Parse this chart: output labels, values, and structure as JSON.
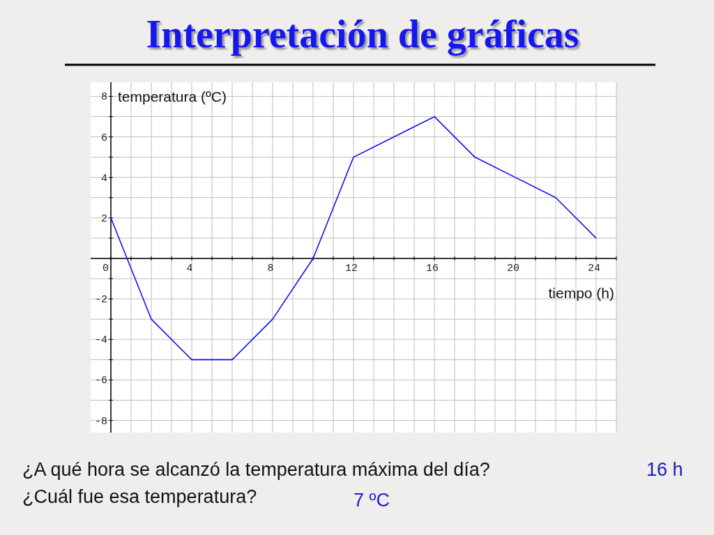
{
  "chart_data": {
    "type": "line",
    "title": "Interpretación de gráficas",
    "xlabel": "tiempo (h)",
    "ylabel": "temperatura (ºC)",
    "x": [
      0,
      2,
      4,
      6,
      8,
      10,
      12,
      14,
      16,
      18,
      20,
      22,
      24
    ],
    "values": [
      2,
      -3,
      -5,
      -5,
      -3,
      0,
      5,
      6,
      7,
      5,
      4,
      3,
      1
    ],
    "color": "#1010f0",
    "xlim": [
      -1,
      25
    ],
    "ylim": [
      -8.6,
      8.7
    ],
    "xticks": [
      0,
      {
        "value": 1,
        "label": null
      },
      {
        "value": 2,
        "label": null
      },
      {
        "value": 3,
        "label": null
      },
      4,
      {
        "value": 5,
        "label": null
      },
      {
        "value": 6,
        "label": null
      },
      {
        "value": 7,
        "label": null
      },
      8,
      {
        "value": 9,
        "label": null
      },
      {
        "value": 10,
        "label": null
      },
      {
        "value": 11,
        "label": null
      },
      12,
      {
        "value": 13,
        "label": null
      },
      {
        "value": 14,
        "label": null
      },
      {
        "value": 15,
        "label": null
      },
      16,
      {
        "value": 17,
        "label": null
      },
      {
        "value": 18,
        "label": null
      },
      {
        "value": 19,
        "label": null
      },
      20,
      {
        "value": 21,
        "label": null
      },
      {
        "value": 22,
        "label": null
      },
      {
        "value": 23,
        "label": null
      },
      24,
      {
        "value": 25,
        "label": null
      }
    ],
    "yticks": [
      -8,
      {
        "value": -7,
        "label": null
      },
      -6,
      {
        "value": -5,
        "label": null
      },
      -4,
      {
        "value": -3,
        "label": null
      },
      -2,
      {
        "value": -1,
        "label": null
      },
      {
        "value": 0,
        "label": null
      },
      {
        "value": 1,
        "label": null
      },
      2,
      {
        "value": 3,
        "label": null
      },
      4,
      {
        "value": 5,
        "label": null
      },
      6,
      {
        "value": 7,
        "label": null
      },
      8
    ],
    "grid": true,
    "annotations": [
      "¿A qué hora se alcanzó la temperatura máxima del día?",
      "16 h",
      "¿Cuál fue esa temperatura?",
      "7 ºC"
    ]
  }
}
